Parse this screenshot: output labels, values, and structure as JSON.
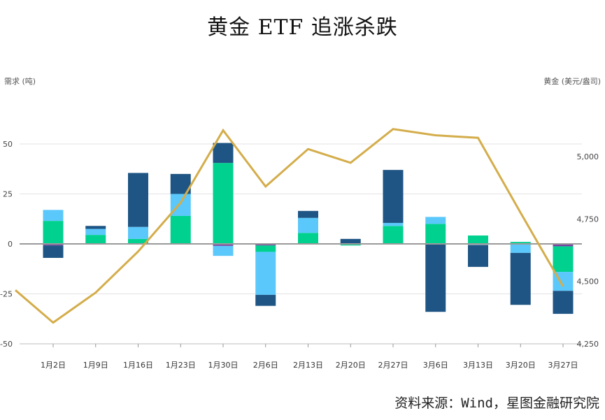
{
  "title": "黄金 ETF 追涨杀跌",
  "source": "资料来源：Wind，星图金融研究院",
  "chart_data": {
    "type": "bar+line",
    "ylabel_left": "需求 (吨)",
    "ylabel_right": "黄金 (美元/盎司)",
    "ylim_left": [
      -50,
      75
    ],
    "ylim_right": [
      4250,
      4950
    ],
    "yticks_left": [
      "-50",
      "-25",
      "0",
      "25",
      "50"
    ],
    "yticks_right": [
      "4,250",
      "4,500",
      "4,750",
      "5,000"
    ],
    "categories": [
      "1月2日",
      "1月9日",
      "1月16日",
      "1月23日",
      "1月30日",
      "2月6日",
      "2月13日",
      "2月20日",
      "2月27日",
      "3月6日",
      "3月13日",
      "3月20日",
      "3月27日"
    ],
    "colors": {
      "dark_blue": "#1f5584",
      "light_blue": "#5bc8fb",
      "green": "#00d18f",
      "purple": "#7b3fa0",
      "gold": "#d4ad4b"
    },
    "bars": [
      {
        "segments": [
          {
            "color": "green",
            "from": 0,
            "to": 11.5
          },
          {
            "color": "light_blue",
            "from": 11.5,
            "to": 17
          },
          {
            "color": "purple",
            "from": 0,
            "to": -0.8
          },
          {
            "color": "dark_blue",
            "from": -0.8,
            "to": -7
          }
        ]
      },
      {
        "segments": [
          {
            "color": "green",
            "from": 0,
            "to": 4.5
          },
          {
            "color": "light_blue",
            "from": 4.5,
            "to": 7.5
          },
          {
            "color": "dark_blue",
            "from": 7.5,
            "to": 9
          }
        ]
      },
      {
        "segments": [
          {
            "color": "green",
            "from": 0,
            "to": 2.5
          },
          {
            "color": "light_blue",
            "from": 2.5,
            "to": 8.5
          },
          {
            "color": "dark_blue",
            "from": 8.5,
            "to": 35.5
          }
        ]
      },
      {
        "segments": [
          {
            "color": "green",
            "from": 0,
            "to": 14
          },
          {
            "color": "light_blue",
            "from": 14,
            "to": 25
          },
          {
            "color": "dark_blue",
            "from": 25,
            "to": 35
          }
        ]
      },
      {
        "segments": [
          {
            "color": "green",
            "from": 0,
            "to": 40.5
          },
          {
            "color": "dark_blue",
            "from": 40.5,
            "to": 50.5
          },
          {
            "color": "purple",
            "from": 0,
            "to": -1
          },
          {
            "color": "light_blue",
            "from": -1,
            "to": -6
          }
        ]
      },
      {
        "segments": [
          {
            "color": "purple",
            "from": 0,
            "to": -0.8
          },
          {
            "color": "green",
            "from": -0.8,
            "to": -4
          },
          {
            "color": "light_blue",
            "from": -4,
            "to": -25.5
          },
          {
            "color": "dark_blue",
            "from": -25.5,
            "to": -31
          }
        ]
      },
      {
        "segments": [
          {
            "color": "green",
            "from": 0,
            "to": 5.5
          },
          {
            "color": "light_blue",
            "from": 5.5,
            "to": 13
          },
          {
            "color": "dark_blue",
            "from": 13,
            "to": 16.5
          }
        ]
      },
      {
        "segments": [
          {
            "color": "dark_blue",
            "from": 0,
            "to": 2.5
          },
          {
            "color": "green",
            "from": 0,
            "to": -0.8
          }
        ]
      },
      {
        "segments": [
          {
            "color": "green",
            "from": 0,
            "to": 9
          },
          {
            "color": "light_blue",
            "from": 9,
            "to": 10.5
          },
          {
            "color": "dark_blue",
            "from": 10.5,
            "to": 37
          }
        ]
      },
      {
        "segments": [
          {
            "color": "green",
            "from": 0,
            "to": 10
          },
          {
            "color": "light_blue",
            "from": 10,
            "to": 13.5
          },
          {
            "color": "dark_blue",
            "from": 0,
            "to": -34
          }
        ]
      },
      {
        "segments": [
          {
            "color": "green",
            "from": 0,
            "to": 4.2
          },
          {
            "color": "dark_blue",
            "from": -0.5,
            "to": -11.5
          }
        ]
      },
      {
        "segments": [
          {
            "color": "green",
            "from": 0,
            "to": 1
          },
          {
            "color": "light_blue",
            "from": 0,
            "to": -4.5
          },
          {
            "color": "dark_blue",
            "from": -4.5,
            "to": -30.5
          }
        ]
      },
      {
        "segments": [
          {
            "color": "purple",
            "from": 0,
            "to": -1.2
          },
          {
            "color": "green",
            "from": -1.2,
            "to": -14
          },
          {
            "color": "light_blue",
            "from": -14,
            "to": -23.5
          },
          {
            "color": "dark_blue",
            "from": -23.5,
            "to": -35
          }
        ]
      }
    ],
    "gold_line": {
      "x": [
        "start",
        "1月2日",
        "1月9日",
        "1月16日",
        "1月23日",
        "1月30日",
        "2月6日",
        "2月13日",
        "2月20日",
        "2月27日",
        "3月6日",
        "3月13日",
        "3月20日",
        "3月27日"
      ],
      "y": [
        4465,
        4335,
        4455,
        4620,
        4815,
        5105,
        4880,
        5030,
        4975,
        5110,
        5085,
        5075,
        4775,
        4480
      ]
    }
  }
}
